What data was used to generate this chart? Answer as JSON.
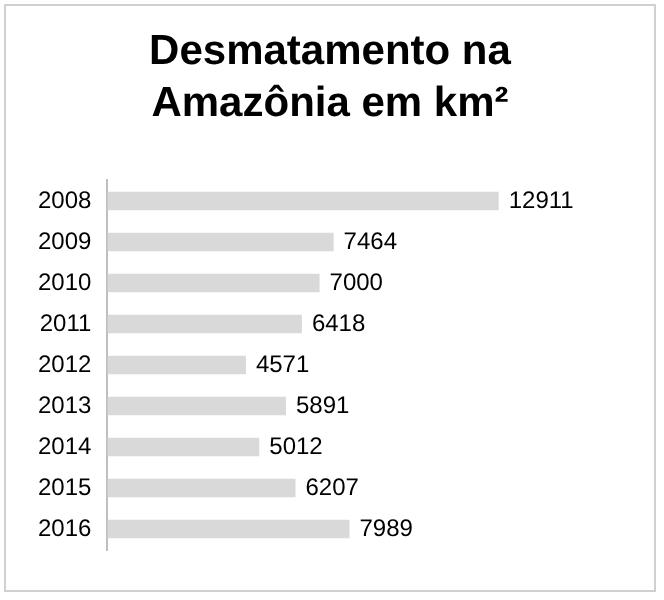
{
  "chart_data": {
    "type": "bar",
    "orientation": "horizontal",
    "title": "Desmatamento na Amazônia em km²",
    "categories": [
      "2008",
      "2009",
      "2010",
      "2011",
      "2012",
      "2013",
      "2014",
      "2015",
      "2016"
    ],
    "values": [
      12911,
      7464,
      7000,
      6418,
      4571,
      5891,
      5012,
      6207,
      7989
    ],
    "color": "#d9d9d9",
    "data_labels": true,
    "grid": false,
    "legend": false
  }
}
